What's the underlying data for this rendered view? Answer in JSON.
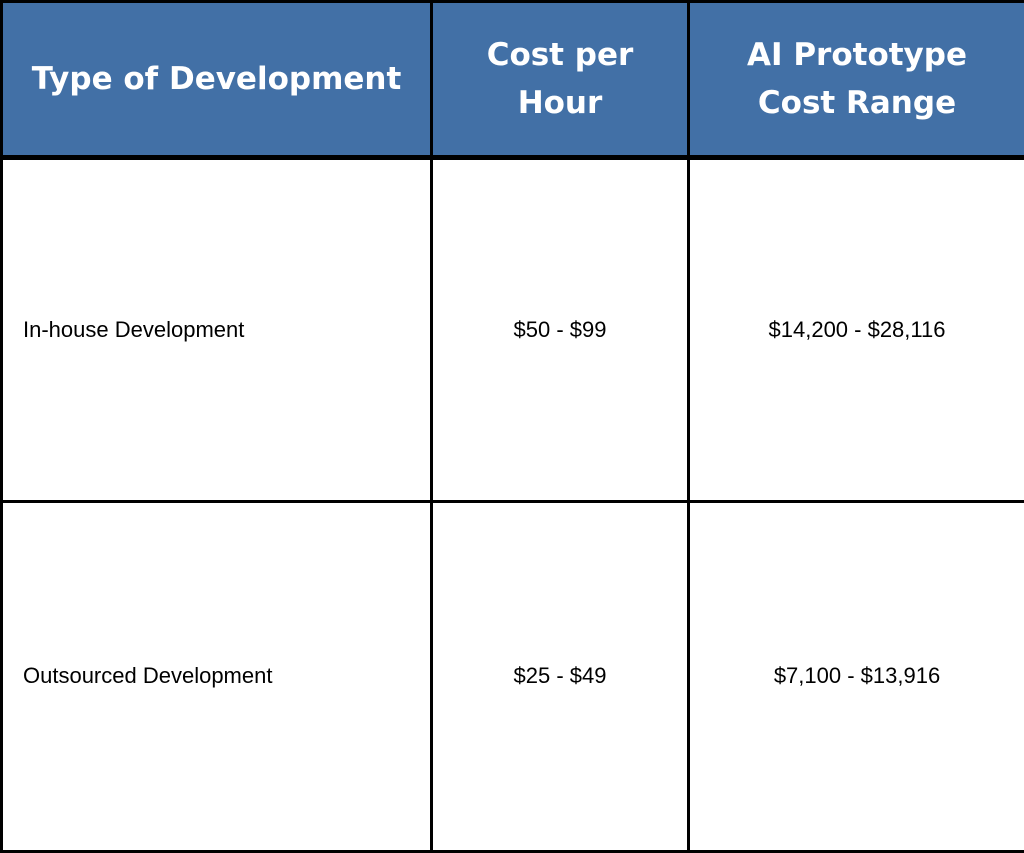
{
  "colors": {
    "header_bg": "#4270a6",
    "header_text": "#ffffff",
    "border": "#000000"
  },
  "table": {
    "headers": [
      "Type of Development",
      "Cost per Hour",
      "AI Prototype Cost Range"
    ],
    "rows": [
      [
        "In-house Development",
        "$50 - $99",
        "$14,200 - $28,116"
      ],
      [
        "Outsourced Development",
        "$25 - $49",
        "$7,100 - $13,916"
      ]
    ]
  }
}
